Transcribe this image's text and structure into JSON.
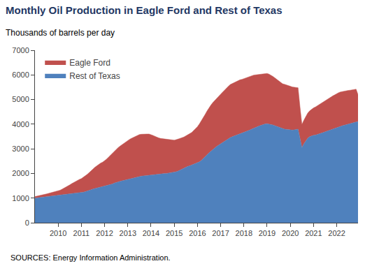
{
  "chart_data": {
    "type": "area",
    "stacked": true,
    "title": "Monthly Oil Production in Eagle Ford and Rest of Texas",
    "subtitle": "Thousands of barrels per day",
    "annotations": [
      "SOURCES: Energy Information Administration."
    ],
    "legend": "upper left",
    "grid": false,
    "xlim": [
      2009,
      2022.916666666667
    ],
    "xticks": [
      2010,
      2011,
      2012,
      2013,
      2014,
      2015,
      2016,
      2017,
      2018,
      2019,
      2020,
      2021,
      2022
    ],
    "ylim": [
      0,
      7000
    ],
    "yticks": [
      0,
      1000,
      2000,
      3000,
      4000,
      5000,
      6000,
      7000
    ],
    "x": [
      2009,
      2009.083333333333,
      2009.166666666667,
      2009.25,
      2009.333333333333,
      2009.416666666667,
      2009.5,
      2009.583333333333,
      2009.666666666667,
      2009.75,
      2009.833333333333,
      2009.916666666667,
      2010,
      2010.083333333333,
      2010.166666666667,
      2010.25,
      2010.333333333333,
      2010.416666666667,
      2010.5,
      2010.583333333333,
      2010.666666666667,
      2010.75,
      2010.833333333333,
      2010.916666666667,
      2011,
      2011.083333333333,
      2011.166666666667,
      2011.25,
      2011.333333333333,
      2011.416666666667,
      2011.5,
      2011.583333333333,
      2011.666666666667,
      2011.75,
      2011.833333333333,
      2011.916666666667,
      2012,
      2012.083333333333,
      2012.166666666667,
      2012.25,
      2012.333333333333,
      2012.416666666667,
      2012.5,
      2012.583333333333,
      2012.666666666667,
      2012.75,
      2012.833333333333,
      2012.916666666667,
      2013,
      2013.083333333333,
      2013.166666666667,
      2013.25,
      2013.333333333333,
      2013.416666666667,
      2013.5,
      2013.583333333333,
      2013.666666666667,
      2013.75,
      2013.833333333333,
      2013.916666666667,
      2014,
      2014.083333333333,
      2014.166666666667,
      2014.25,
      2014.333333333333,
      2014.416666666667,
      2014.5,
      2014.583333333333,
      2014.666666666667,
      2014.75,
      2014.833333333333,
      2014.916666666667,
      2015,
      2015.083333333333,
      2015.166666666667,
      2015.25,
      2015.333333333333,
      2015.416666666667,
      2015.5,
      2015.583333333333,
      2015.666666666667,
      2015.75,
      2015.833333333333,
      2015.916666666667,
      2016,
      2016.083333333333,
      2016.166666666667,
      2016.25,
      2016.333333333333,
      2016.416666666667,
      2016.5,
      2016.583333333333,
      2016.666666666667,
      2016.75,
      2016.833333333333,
      2016.916666666667,
      2017,
      2017.083333333333,
      2017.166666666667,
      2017.25,
      2017.333333333333,
      2017.416666666667,
      2017.5,
      2017.583333333333,
      2017.666666666667,
      2017.75,
      2017.833333333333,
      2017.916666666667,
      2018,
      2018.083333333333,
      2018.166666666667,
      2018.25,
      2018.333333333333,
      2018.416666666667,
      2018.5,
      2018.583333333333,
      2018.666666666667,
      2018.75,
      2018.833333333333,
      2018.916666666667,
      2019,
      2019.083333333333,
      2019.166666666667,
      2019.25,
      2019.333333333333,
      2019.416666666667,
      2019.5,
      2019.583333333333,
      2019.666666666667,
      2019.75,
      2019.833333333333,
      2019.916666666667,
      2020,
      2020.083333333333,
      2020.166666666667,
      2020.25,
      2020.333333333333,
      2020.416666666667,
      2020.5,
      2020.583333333333,
      2020.666666666667,
      2020.75,
      2020.833333333333,
      2020.916666666667,
      2021,
      2021.083333333333,
      2021.166666666667,
      2021.25,
      2021.333333333333,
      2021.416666666667,
      2021.5,
      2021.583333333333,
      2021.666666666667,
      2021.75,
      2021.833333333333,
      2021.916666666667,
      2022,
      2022.083333333333,
      2022.166666666667,
      2022.25,
      2022.333333333333,
      2022.416666666667,
      2022.5,
      2022.583333333333,
      2022.666666666667,
      2022.75,
      2022.833333333333,
      2022.916666666667
    ],
    "series": [
      {
        "name": "Rest of Texas",
        "color": "#4F81BD",
        "values": [
          1000,
          1010,
          1020,
          1030,
          1040,
          1050,
          1060,
          1070,
          1080,
          1090,
          1100,
          1100,
          1100,
          1110,
          1120,
          1130,
          1140,
          1150,
          1160,
          1175,
          1190,
          1200,
          1210,
          1220,
          1220,
          1240,
          1260,
          1280,
          1310,
          1340,
          1370,
          1390,
          1410,
          1430,
          1450,
          1460,
          1470,
          1490,
          1510,
          1540,
          1570,
          1610,
          1640,
          1660,
          1680,
          1700,
          1720,
          1740,
          1755,
          1770,
          1790,
          1810,
          1840,
          1870,
          1880,
          1890,
          1900,
          1910,
          1920,
          1930,
          1940,
          1945,
          1950,
          1960,
          1970,
          1980,
          1990,
          1995,
          2000,
          2010,
          2020,
          2030,
          2040,
          2070,
          2100,
          2140,
          2180,
          2220,
          2260,
          2290,
          2310,
          2340,
          2370,
          2390,
          2420,
          2470,
          2530,
          2600,
          2680,
          2760,
          2840,
          2910,
          2980,
          3040,
          3100,
          3150,
          3200,
          3260,
          3310,
          3370,
          3410,
          3460,
          3490,
          3520,
          3540,
          3570,
          3600,
          3620,
          3650,
          3680,
          3720,
          3760,
          3800,
          3840,
          3870,
          3900,
          3930,
          3960,
          3990,
          4010,
          4020,
          4010,
          3990,
          3970,
          3940,
          3910,
          3870,
          3840,
          3810,
          3800,
          3790,
          3780,
          3760,
          3760,
          3770,
          3780,
          3800,
          3430,
          3050,
          3200,
          3330,
          3430,
          3490,
          3530,
          3550,
          3560,
          3580,
          3610,
          3640,
          3660,
          3690,
          3720,
          3740,
          3770,
          3800,
          3830,
          3870,
          3900,
          3920,
          3940,
          3960,
          3980,
          4000,
          4020,
          4040,
          4070,
          4090,
          4110
        ]
      },
      {
        "name": "Eagle Ford",
        "color": "#C0504D",
        "values": [
          60,
          65,
          70,
          80,
          90,
          100,
          110,
          120,
          130,
          140,
          155,
          170,
          185,
          210,
          240,
          270,
          305,
          340,
          375,
          410,
          445,
          480,
          510,
          540,
          570,
          600,
          640,
          680,
          720,
          770,
          810,
          860,
          900,
          940,
          970,
          1000,
          1040,
          1090,
          1150,
          1200,
          1260,
          1310,
          1350,
          1390,
          1430,
          1470,
          1510,
          1550,
          1590,
          1620,
          1640,
          1660,
          1680,
          1690,
          1700,
          1700,
          1700,
          1690,
          1680,
          1670,
          1640,
          1600,
          1560,
          1510,
          1470,
          1440,
          1420,
          1390,
          1370,
          1350,
          1340,
          1330,
          1310,
          1300,
          1290,
          1280,
          1270,
          1260,
          1260,
          1270,
          1290,
          1320,
          1370,
          1420,
          1480,
          1540,
          1600,
          1660,
          1720,
          1780,
          1830,
          1870,
          1900,
          1930,
          1960,
          1990,
          2010,
          2040,
          2070,
          2100,
          2130,
          2150,
          2160,
          2170,
          2180,
          2190,
          2200,
          2200,
          2200,
          2200,
          2190,
          2180,
          2170,
          2150,
          2130,
          2110,
          2090,
          2080,
          2070,
          2060,
          2040,
          2020,
          2000,
          1970,
          1940,
          1910,
          1880,
          1850,
          1830,
          1820,
          1810,
          1800,
          1780,
          1750,
          1730,
          1710,
          1680,
          1270,
          940,
          960,
          990,
          1020,
          1050,
          1080,
          1110,
          1140,
          1170,
          1200,
          1230,
          1250,
          1270,
          1290,
          1310,
          1330,
          1350,
          1360,
          1370,
          1380,
          1390,
          1390,
          1390,
          1380,
          1370,
          1360,
          1350,
          1340,
          1330,
          1090
        ]
      }
    ]
  }
}
